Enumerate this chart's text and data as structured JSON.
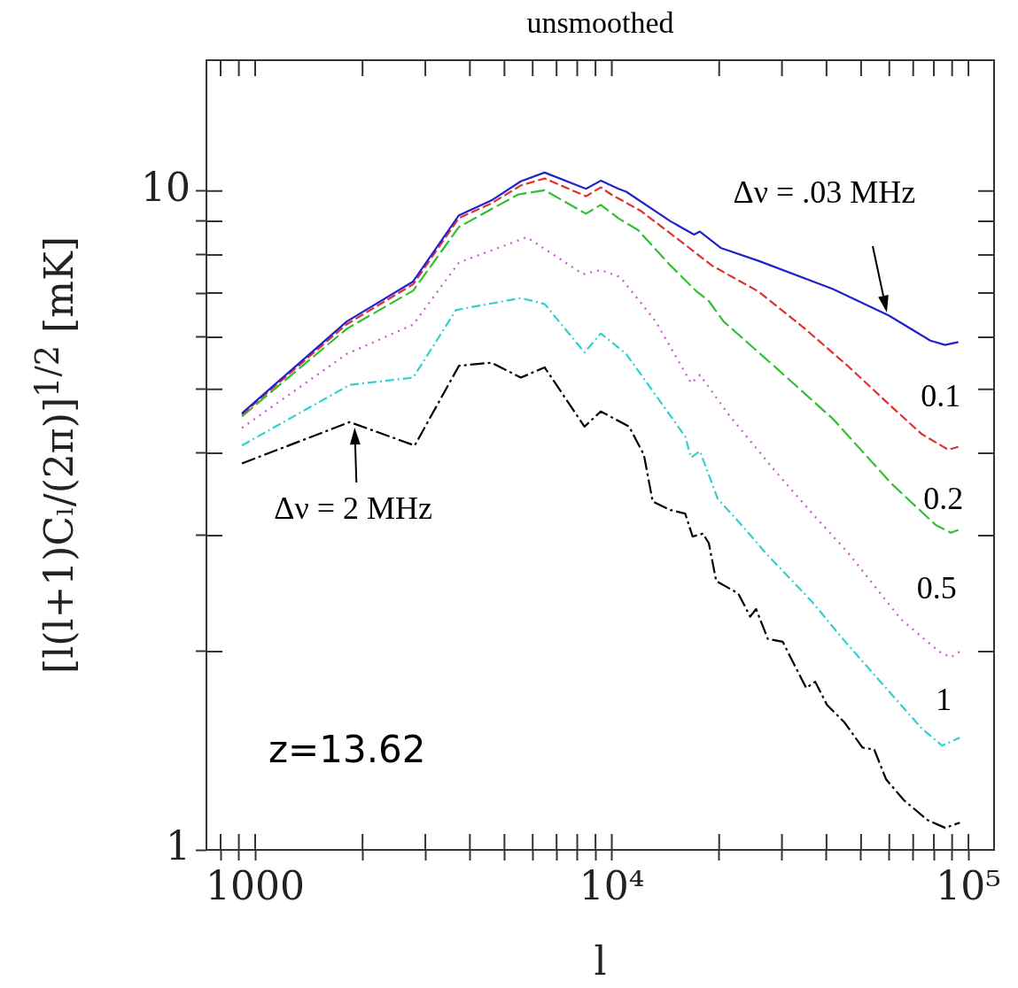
{
  "chart_data": {
    "type": "line",
    "title": "unsmoothed",
    "xlabel": "l",
    "ylabel": "[l(l+1)Cₗ/(2π)]$^{1/2}$ [mK]",
    "log": "xy",
    "xlim": [
      730,
      118000
    ],
    "ylim": [
      1,
      15.8
    ],
    "xticks": [
      {
        "value": 800,
        "label": null
      },
      {
        "value": 900,
        "label": null
      },
      1000,
      {
        "value": 2000,
        "label": null
      },
      {
        "value": 3000,
        "label": null
      },
      {
        "value": 4000,
        "label": null
      },
      {
        "value": 5000,
        "label": null
      },
      {
        "value": 6000,
        "label": null
      },
      {
        "value": 7000,
        "label": null
      },
      {
        "value": 8000,
        "label": null
      },
      {
        "value": 9000,
        "label": null
      },
      {
        "value": 10000,
        "label": "10⁴"
      },
      {
        "value": 20000,
        "label": null
      },
      {
        "value": 30000,
        "label": null
      },
      {
        "value": 40000,
        "label": null
      },
      {
        "value": 50000,
        "label": null
      },
      {
        "value": 60000,
        "label": null
      },
      {
        "value": 70000,
        "label": null
      },
      {
        "value": 80000,
        "label": null
      },
      {
        "value": 90000,
        "label": null
      },
      {
        "value": 100000,
        "label": "10⁵"
      }
    ],
    "yticks": [
      1,
      {
        "value": 2,
        "label": null
      },
      {
        "value": 3,
        "label": null
      },
      {
        "value": 4,
        "label": null
      },
      {
        "value": 5,
        "label": null
      },
      {
        "value": 6,
        "label": null
      },
      {
        "value": 7,
        "label": null
      },
      {
        "value": 8,
        "label": null
      },
      {
        "value": 9,
        "label": null
      },
      10
    ],
    "annotations": [
      "z=13.62"
    ],
    "series": [
      {
        "name": "Δν = .03 MHz",
        "color": "#2222cc",
        "line_style": "solid",
        "x": [
          918,
          1807,
          2773,
          3726,
          4600,
          5559,
          6480,
          8465,
          9311,
          10440,
          10970,
          14600,
          17010,
          17660,
          20190,
          25880,
          41690,
          59890,
          78200,
          86000,
          93700
        ],
        "values": [
          4.6,
          6.34,
          7.29,
          9.19,
          9.68,
          10.35,
          10.67,
          10.08,
          10.37,
          10.08,
          9.98,
          9.0,
          8.59,
          8.68,
          8.2,
          7.83,
          7.1,
          6.47,
          5.93,
          5.84,
          5.9
        ]
      },
      {
        "name": "0.1",
        "color": "#e03030",
        "line_style": "dashed",
        "x": [
          918,
          1807,
          2773,
          3726,
          4600,
          5559,
          6480,
          8465,
          9311,
          9970,
          12060,
          16060,
          19070,
          25880,
          34450,
          45850,
          61050,
          73850,
          87700,
          93700
        ],
        "values": [
          4.58,
          6.28,
          7.22,
          9.1,
          9.58,
          10.2,
          10.45,
          9.82,
          10.13,
          9.88,
          9.33,
          8.29,
          7.71,
          7.03,
          6.21,
          5.43,
          4.7,
          4.28,
          4.05,
          4.09
        ]
      },
      {
        "name": "0.2",
        "color": "#30c030",
        "line_style": "dashed",
        "x": [
          918,
          1807,
          2773,
          3726,
          5457,
          6480,
          8465,
          9311,
          10440,
          11840,
          14600,
          17340,
          18710,
          20580,
          28460,
          41690,
          61050,
          81100,
          89300,
          93700
        ],
        "values": [
          4.55,
          6.18,
          7.06,
          8.82,
          9.88,
          10.03,
          9.24,
          9.53,
          9.09,
          8.73,
          7.71,
          7.03,
          6.81,
          6.34,
          5.43,
          4.51,
          3.59,
          3.11,
          3.03,
          3.06
        ]
      },
      {
        "name": "0.5",
        "color": "#d050d0",
        "line_style": "dotted",
        "x": [
          918,
          1807,
          2773,
          3726,
          5780,
          8307,
          9311,
          10560,
          13280,
          16690,
          17660,
          21380,
          28460,
          36480,
          45850,
          64640,
          82700,
          89300,
          94600
        ],
        "values": [
          4.37,
          5.66,
          6.27,
          7.79,
          8.51,
          7.48,
          7.59,
          7.4,
          6.34,
          5.11,
          5.26,
          4.56,
          3.78,
          3.24,
          2.83,
          2.24,
          2.0,
          1.96,
          2.0
        ]
      },
      {
        "name": "1",
        "color": "#30d0d0",
        "line_style": "dashed",
        "x": [
          918,
          1841,
          2773,
          3659,
          5559,
          6480,
          8384,
          9311,
          10970,
          13280,
          16060,
          16690,
          17660,
          19820,
          23520,
          26880,
          36450,
          44130,
          58750,
          73850,
          84330,
          94600
        ],
        "values": [
          4.11,
          5.08,
          5.21,
          6.6,
          6.88,
          6.74,
          5.69,
          6.08,
          5.66,
          4.9,
          4.24,
          3.94,
          4.03,
          3.41,
          3.08,
          2.83,
          2.38,
          2.1,
          1.76,
          1.53,
          1.44,
          1.48
        ]
      },
      {
        "name": "Δν = 2 MHz",
        "color": "#000000",
        "line_style": "dashed",
        "x": [
          918,
          1841,
          2801,
          3727,
          4600,
          5559,
          6480,
          8384,
          9311,
          11180,
          12300,
          13020,
          14600,
          16060,
          16850,
          18010,
          18710,
          19620,
          22630,
          24430,
          25380,
          27390,
          30130,
          35100,
          37170,
          40120,
          44980,
          50440,
          54430,
          58750,
          65880,
          76740,
          86100,
          94600
        ],
        "values": [
          3.86,
          4.46,
          4.11,
          5.43,
          5.49,
          5.21,
          5.4,
          4.39,
          4.63,
          4.39,
          3.98,
          3.38,
          3.28,
          3.24,
          2.99,
          3.02,
          2.92,
          2.56,
          2.45,
          2.26,
          2.32,
          2.09,
          2.07,
          1.76,
          1.8,
          1.66,
          1.56,
          1.43,
          1.42,
          1.28,
          1.19,
          1.11,
          1.08,
          1.1
        ]
      }
    ]
  }
}
